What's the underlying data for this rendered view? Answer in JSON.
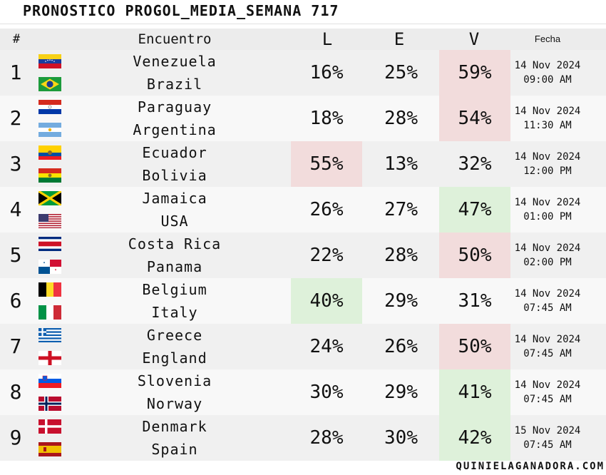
{
  "title": "Pronostico Progol_Media_Semana 717",
  "headers": {
    "num": "#",
    "encuentro": "Encuentro",
    "l": "L",
    "e": "E",
    "v": "V",
    "fecha": "Fecha"
  },
  "colors": {
    "highlight_red": "#f2dcdc",
    "highlight_green": "#def1da"
  },
  "matches": [
    {
      "num": "1",
      "home": "Venezuela",
      "away": "Brazil",
      "home_flag": "venezuela-flag",
      "away_flag": "brazil-flag",
      "l": "16%",
      "e": "25%",
      "v": "59%",
      "highlight": "v",
      "highlight_color": "red",
      "date": "14 Nov 2024",
      "time": "09:00 AM"
    },
    {
      "num": "2",
      "home": "Paraguay",
      "away": "Argentina",
      "home_flag": "paraguay-flag",
      "away_flag": "argentina-flag",
      "l": "18%",
      "e": "28%",
      "v": "54%",
      "highlight": "v",
      "highlight_color": "red",
      "date": "14 Nov 2024",
      "time": "11:30 AM"
    },
    {
      "num": "3",
      "home": "Ecuador",
      "away": "Bolivia",
      "home_flag": "ecuador-flag",
      "away_flag": "bolivia-flag",
      "l": "55%",
      "e": "13%",
      "v": "32%",
      "highlight": "l",
      "highlight_color": "red",
      "date": "14 Nov 2024",
      "time": "12:00 PM"
    },
    {
      "num": "4",
      "home": "Jamaica",
      "away": "USA",
      "home_flag": "jamaica-flag",
      "away_flag": "usa-flag",
      "l": "26%",
      "e": "27%",
      "v": "47%",
      "highlight": "v",
      "highlight_color": "green",
      "date": "14 Nov 2024",
      "time": "01:00 PM"
    },
    {
      "num": "5",
      "home": "Costa Rica",
      "away": "Panama",
      "home_flag": "costa-rica-flag",
      "away_flag": "panama-flag",
      "l": "22%",
      "e": "28%",
      "v": "50%",
      "highlight": "v",
      "highlight_color": "red",
      "date": "14 Nov 2024",
      "time": "02:00 PM"
    },
    {
      "num": "6",
      "home": "Belgium",
      "away": "Italy",
      "home_flag": "belgium-flag",
      "away_flag": "italy-flag",
      "l": "40%",
      "e": "29%",
      "v": "31%",
      "highlight": "l",
      "highlight_color": "green",
      "date": "14 Nov 2024",
      "time": "07:45 AM"
    },
    {
      "num": "7",
      "home": "Greece",
      "away": "England",
      "home_flag": "greece-flag",
      "away_flag": "england-flag",
      "l": "24%",
      "e": "26%",
      "v": "50%",
      "highlight": "v",
      "highlight_color": "red",
      "date": "14 Nov 2024",
      "time": "07:45 AM"
    },
    {
      "num": "8",
      "home": "Slovenia",
      "away": "Norway",
      "home_flag": "slovenia-flag",
      "away_flag": "norway-flag",
      "l": "30%",
      "e": "29%",
      "v": "41%",
      "highlight": "v",
      "highlight_color": "green",
      "date": "14 Nov 2024",
      "time": "07:45 AM"
    },
    {
      "num": "9",
      "home": "Denmark",
      "away": "Spain",
      "home_flag": "denmark-flag",
      "away_flag": "spain-flag",
      "l": "28%",
      "e": "30%",
      "v": "42%",
      "highlight": "v",
      "highlight_color": "green",
      "date": "15 Nov 2024",
      "time": "07:45 AM"
    }
  ],
  "footer": "quinielaganadora.com"
}
